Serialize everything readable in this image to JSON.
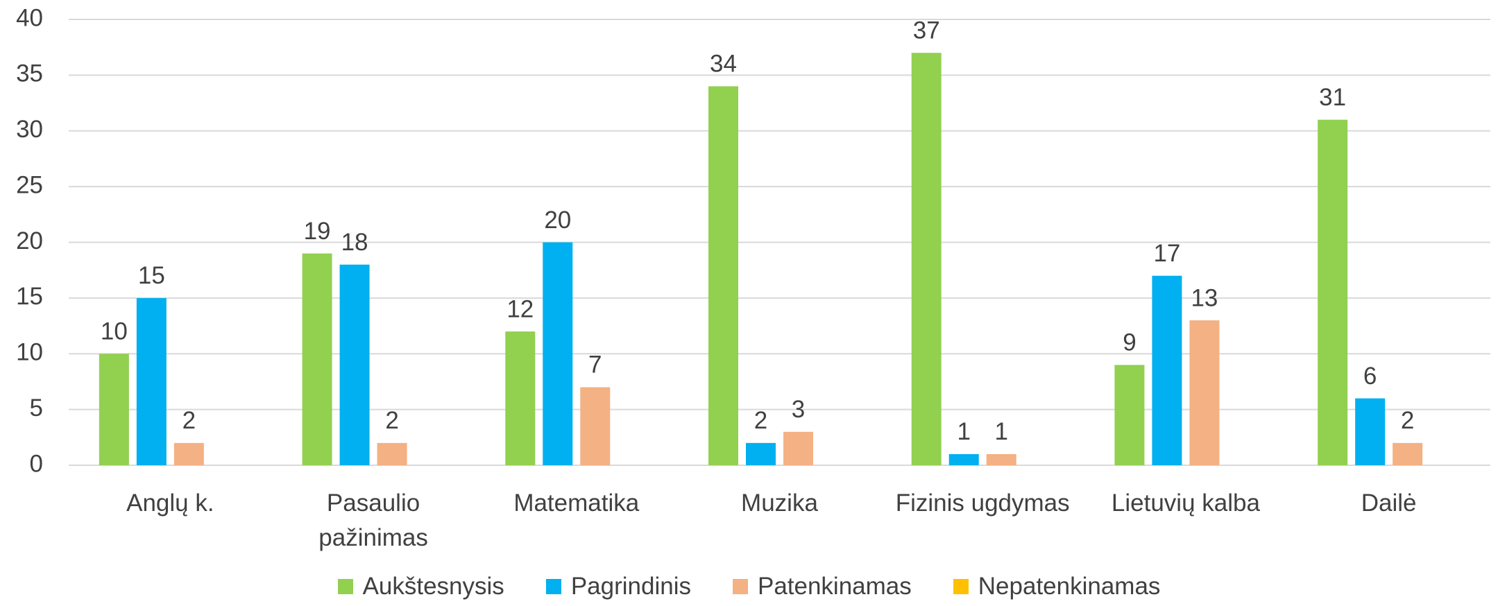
{
  "chart_data": {
    "type": "bar",
    "categories": [
      "Anglų k.",
      "Pasaulio pažinimas",
      "Matematika",
      "Muzika",
      "Fizinis ugdymas",
      "Lietuvių kalba",
      "Dailė"
    ],
    "series": [
      {
        "name": "Aukštesnysis",
        "color": "#92d050",
        "values": [
          10,
          19,
          12,
          34,
          37,
          9,
          31
        ]
      },
      {
        "name": "Pagrindinis",
        "color": "#00b0f0",
        "values": [
          15,
          18,
          20,
          2,
          1,
          17,
          6
        ]
      },
      {
        "name": "Patenkinamas",
        "color": "#f4b183",
        "values": [
          2,
          2,
          7,
          3,
          1,
          13,
          2
        ]
      },
      {
        "name": "Nepatenkinamas",
        "color": "#ffc000",
        "values": [
          0,
          0,
          0,
          0,
          0,
          0,
          0
        ]
      }
    ],
    "ylim": [
      0,
      40
    ],
    "yticks": [
      0,
      5,
      10,
      15,
      20,
      25,
      30,
      35,
      40
    ],
    "grid": true,
    "legend": "bottom"
  }
}
